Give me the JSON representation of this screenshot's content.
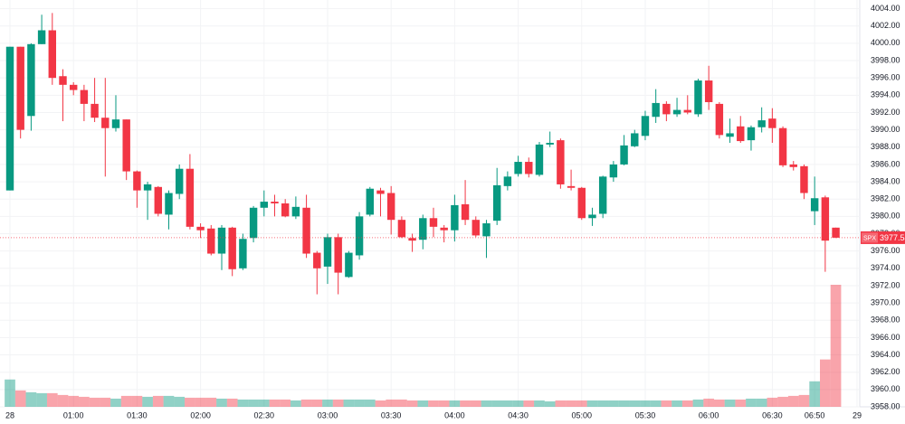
{
  "chart_data": {
    "type": "candlestick",
    "up_color": "#089981",
    "down_color": "#f23645",
    "ylim": [
      3958,
      4005
    ],
    "yticks": [
      {
        "value": 3958,
        "label": "3958.00"
      },
      {
        "value": 3960,
        "label": "3960.00"
      },
      {
        "value": 3962,
        "label": "3962.00"
      },
      {
        "value": 3964,
        "label": "3964.00"
      },
      {
        "value": 3966,
        "label": "3966.00"
      },
      {
        "value": 3968,
        "label": "3968.00"
      },
      {
        "value": 3970,
        "label": "3970.00"
      },
      {
        "value": 3972,
        "label": "3972.00"
      },
      {
        "value": 3974,
        "label": "3974.00"
      },
      {
        "value": 3976,
        "label": "3976.00"
      },
      {
        "value": 3978,
        "label": "3978.00"
      },
      {
        "value": 3980,
        "label": "3980.00"
      },
      {
        "value": 3982,
        "label": "3982.00"
      },
      {
        "value": 3984,
        "label": "3984.00"
      },
      {
        "value": 3986,
        "label": "3986.00"
      },
      {
        "value": 3988,
        "label": "3988.00"
      },
      {
        "value": 3990,
        "label": "3990.00"
      },
      {
        "value": 3992,
        "label": "3992.00"
      },
      {
        "value": 3994,
        "label": "3994.00"
      },
      {
        "value": 3996,
        "label": "3996.00"
      },
      {
        "value": 3998,
        "label": "3998.00"
      },
      {
        "value": 4000,
        "label": "4000.00"
      },
      {
        "value": 4002,
        "label": "4002.00"
      },
      {
        "value": 4004,
        "label": "4004.00"
      }
    ],
    "xlim": [
      -0.94,
      80.26
    ],
    "xticks": [
      {
        "value": 0,
        "label": "28"
      },
      {
        "value": 6,
        "label": "01:00"
      },
      {
        "value": 12,
        "label": "01:30"
      },
      {
        "value": 18,
        "label": "02:00"
      },
      {
        "value": 24,
        "label": "02:30"
      },
      {
        "value": 30,
        "label": "03:00"
      },
      {
        "value": 36,
        "label": "03:30"
      },
      {
        "value": 42,
        "label": "04:00"
      },
      {
        "value": 48,
        "label": "04:30"
      },
      {
        "value": 54,
        "label": "05:00"
      },
      {
        "value": 60,
        "label": "05:30"
      },
      {
        "value": 66,
        "label": "06:00"
      },
      {
        "value": 72,
        "label": "06:30"
      },
      {
        "value": 76,
        "label": "06:50"
      },
      {
        "value": 80,
        "label": "29"
      }
    ],
    "grid": true,
    "open": [
      3983,
      3999.6,
      3991.6,
      3999.9,
      4001.5,
      3996.2,
      3995.2,
      3994.6,
      3993,
      3991.4,
      3990.2,
      3991.2,
      3985.2,
      3983,
      3983.4,
      3980.2,
      3982.6,
      3985.5,
      3978.8,
      3978.6,
      3975.7,
      3978.7,
      3974,
      3977.5,
      3981,
      3981.7,
      3981.5,
      3980,
      3981,
      3975.8,
      3974.2,
      3977.6,
      3973,
      3975.5,
      3980.2,
      3983,
      3982.7,
      3979.6,
      3977.5,
      3977.3,
      3979.8,
      3978.7,
      3978.4,
      3981.4,
      3979.6,
      3977.7,
      3979.5,
      3983.5,
      3984.9,
      3986.3,
      3984.8,
      3988.3,
      3988.8,
      3983.5,
      3983.3,
      3979.8,
      3980.3,
      3984.5,
      3986,
      3988.1,
      3989.3,
      3991.5,
      3993,
      3991.8,
      3992.3,
      3991.8,
      3995.7,
      3993,
      3989.2,
      3990.4,
      3988.8,
      3990.3,
      3991.3,
      3990.2,
      3986,
      3985.8,
      3980.6,
      3982.2,
      3978.7
    ],
    "high": [
      3999.6,
      3999.6,
      4000,
      4003.3,
      4003.5,
      3997,
      3995.5,
      3995.2,
      3996,
      3996,
      3994,
      3991.2,
      3985.3,
      3984,
      3983.5,
      3983,
      3986,
      3987.2,
      3979.2,
      3979,
      3979,
      3978.8,
      3978,
      3981.2,
      3983,
      3982.5,
      3982,
      3982.3,
      3982.5,
      3976,
      3978,
      3978,
      3976,
      3980.5,
      3983.4,
      3983.3,
      3983.5,
      3980,
      3978,
      3980.2,
      3981,
      3979,
      3982.5,
      3984.2,
      3980,
      3979.6,
      3985.6,
      3985.2,
      3987,
      3986.8,
      3988.6,
      3989.8,
      3989,
      3985.4,
      3983.4,
      3981,
      3984.7,
      3986.4,
      3989.4,
      3990,
      3992.2,
      3994.7,
      3993.3,
      3993.7,
      3994,
      3995.9,
      3997.4,
      3993.2,
      3991.3,
      3991.6,
      3990.5,
      3992.6,
      3992.5,
      3990.4,
      3986.4,
      3986,
      3984.6,
      3982.4,
      3978.7
    ],
    "low": [
      3983,
      3989,
      3989.9,
      3999.9,
      3995.2,
      3991,
      3994,
      3991,
      3990.9,
      3984.6,
      3989.8,
      3984.2,
      3981,
      3979.6,
      3980,
      3978.5,
      3982,
      3978.5,
      3977.5,
      3975.5,
      3973.8,
      3973.1,
      3973.8,
      3977,
      3980,
      3980,
      3979.9,
      3979.7,
      3975.2,
      3971,
      3972.2,
      3971,
      3972.9,
      3975,
      3980,
      3980,
      3977.9,
      3977.5,
      3975.9,
      3976.2,
      3977.6,
      3977,
      3977.1,
      3979,
      3977.6,
      3975.2,
      3979,
      3983,
      3984.6,
      3984.5,
      3984.6,
      3988,
      3983.2,
      3983,
      3979.6,
      3978.9,
      3979.8,
      3984,
      3985.9,
      3988,
      3988.8,
      3990.8,
      3991,
      3991.5,
      3991.8,
      3991.5,
      3992.3,
      3989,
      3988.5,
      3988.5,
      3987.6,
      3989.7,
      3988.5,
      3985.7,
      3985.3,
      3982,
      3979,
      3973.6,
      3977.5
    ],
    "close": [
      3999.6,
      3990,
      3999.9,
      4001.5,
      3996,
      3995.2,
      3994.6,
      3993,
      3991.4,
      3990.2,
      3991.2,
      3985.2,
      3983,
      3983.7,
      3980.3,
      3982.7,
      3985.5,
      3978.8,
      3978.4,
      3975.7,
      3978.7,
      3973.9,
      3977.4,
      3981,
      3981.7,
      3981.5,
      3980,
      3981.1,
      3975.7,
      3974,
      3977.6,
      3973.5,
      3975.8,
      3980,
      3983.2,
      3982.6,
      3979.6,
      3977.6,
      3977.2,
      3979.8,
      3978.8,
      3978.4,
      3981.3,
      3979.6,
      3977.8,
      3979.2,
      3983.6,
      3984.6,
      3986.3,
      3984.9,
      3988.3,
      3988.5,
      3983.7,
      3983.3,
      3979.8,
      3980.2,
      3984.6,
      3986,
      3988.2,
      3989.6,
      3991.6,
      3993.1,
      3991.8,
      3992.3,
      3992,
      3995.7,
      3993.2,
      3989.4,
      3989.6,
      3988.7,
      3990.3,
      3991.1,
      3990.2,
      3985.9,
      3985.7,
      3982.7,
      3982.1,
      3977.2,
      3977.54
    ],
    "volume": [
      30,
      18,
      16,
      15,
      15,
      13,
      12,
      11,
      10,
      10,
      9,
      12,
      12,
      11,
      12,
      12,
      11,
      10,
      10,
      10,
      9,
      9,
      8,
      8,
      8,
      8,
      8,
      7,
      8,
      8,
      8,
      8,
      8,
      8,
      8,
      7,
      8,
      8,
      7,
      7,
      7,
      7,
      7,
      7,
      7,
      7,
      7,
      7,
      7,
      7,
      7,
      6,
      7,
      7,
      7,
      7,
      7,
      7,
      7,
      7,
      7,
      7,
      7,
      7,
      7,
      8,
      9,
      8,
      8,
      8,
      9,
      9,
      10,
      11,
      12,
      13,
      28,
      52,
      134
    ],
    "last_price": {
      "label": "SPX",
      "value": 3977.54
    }
  }
}
